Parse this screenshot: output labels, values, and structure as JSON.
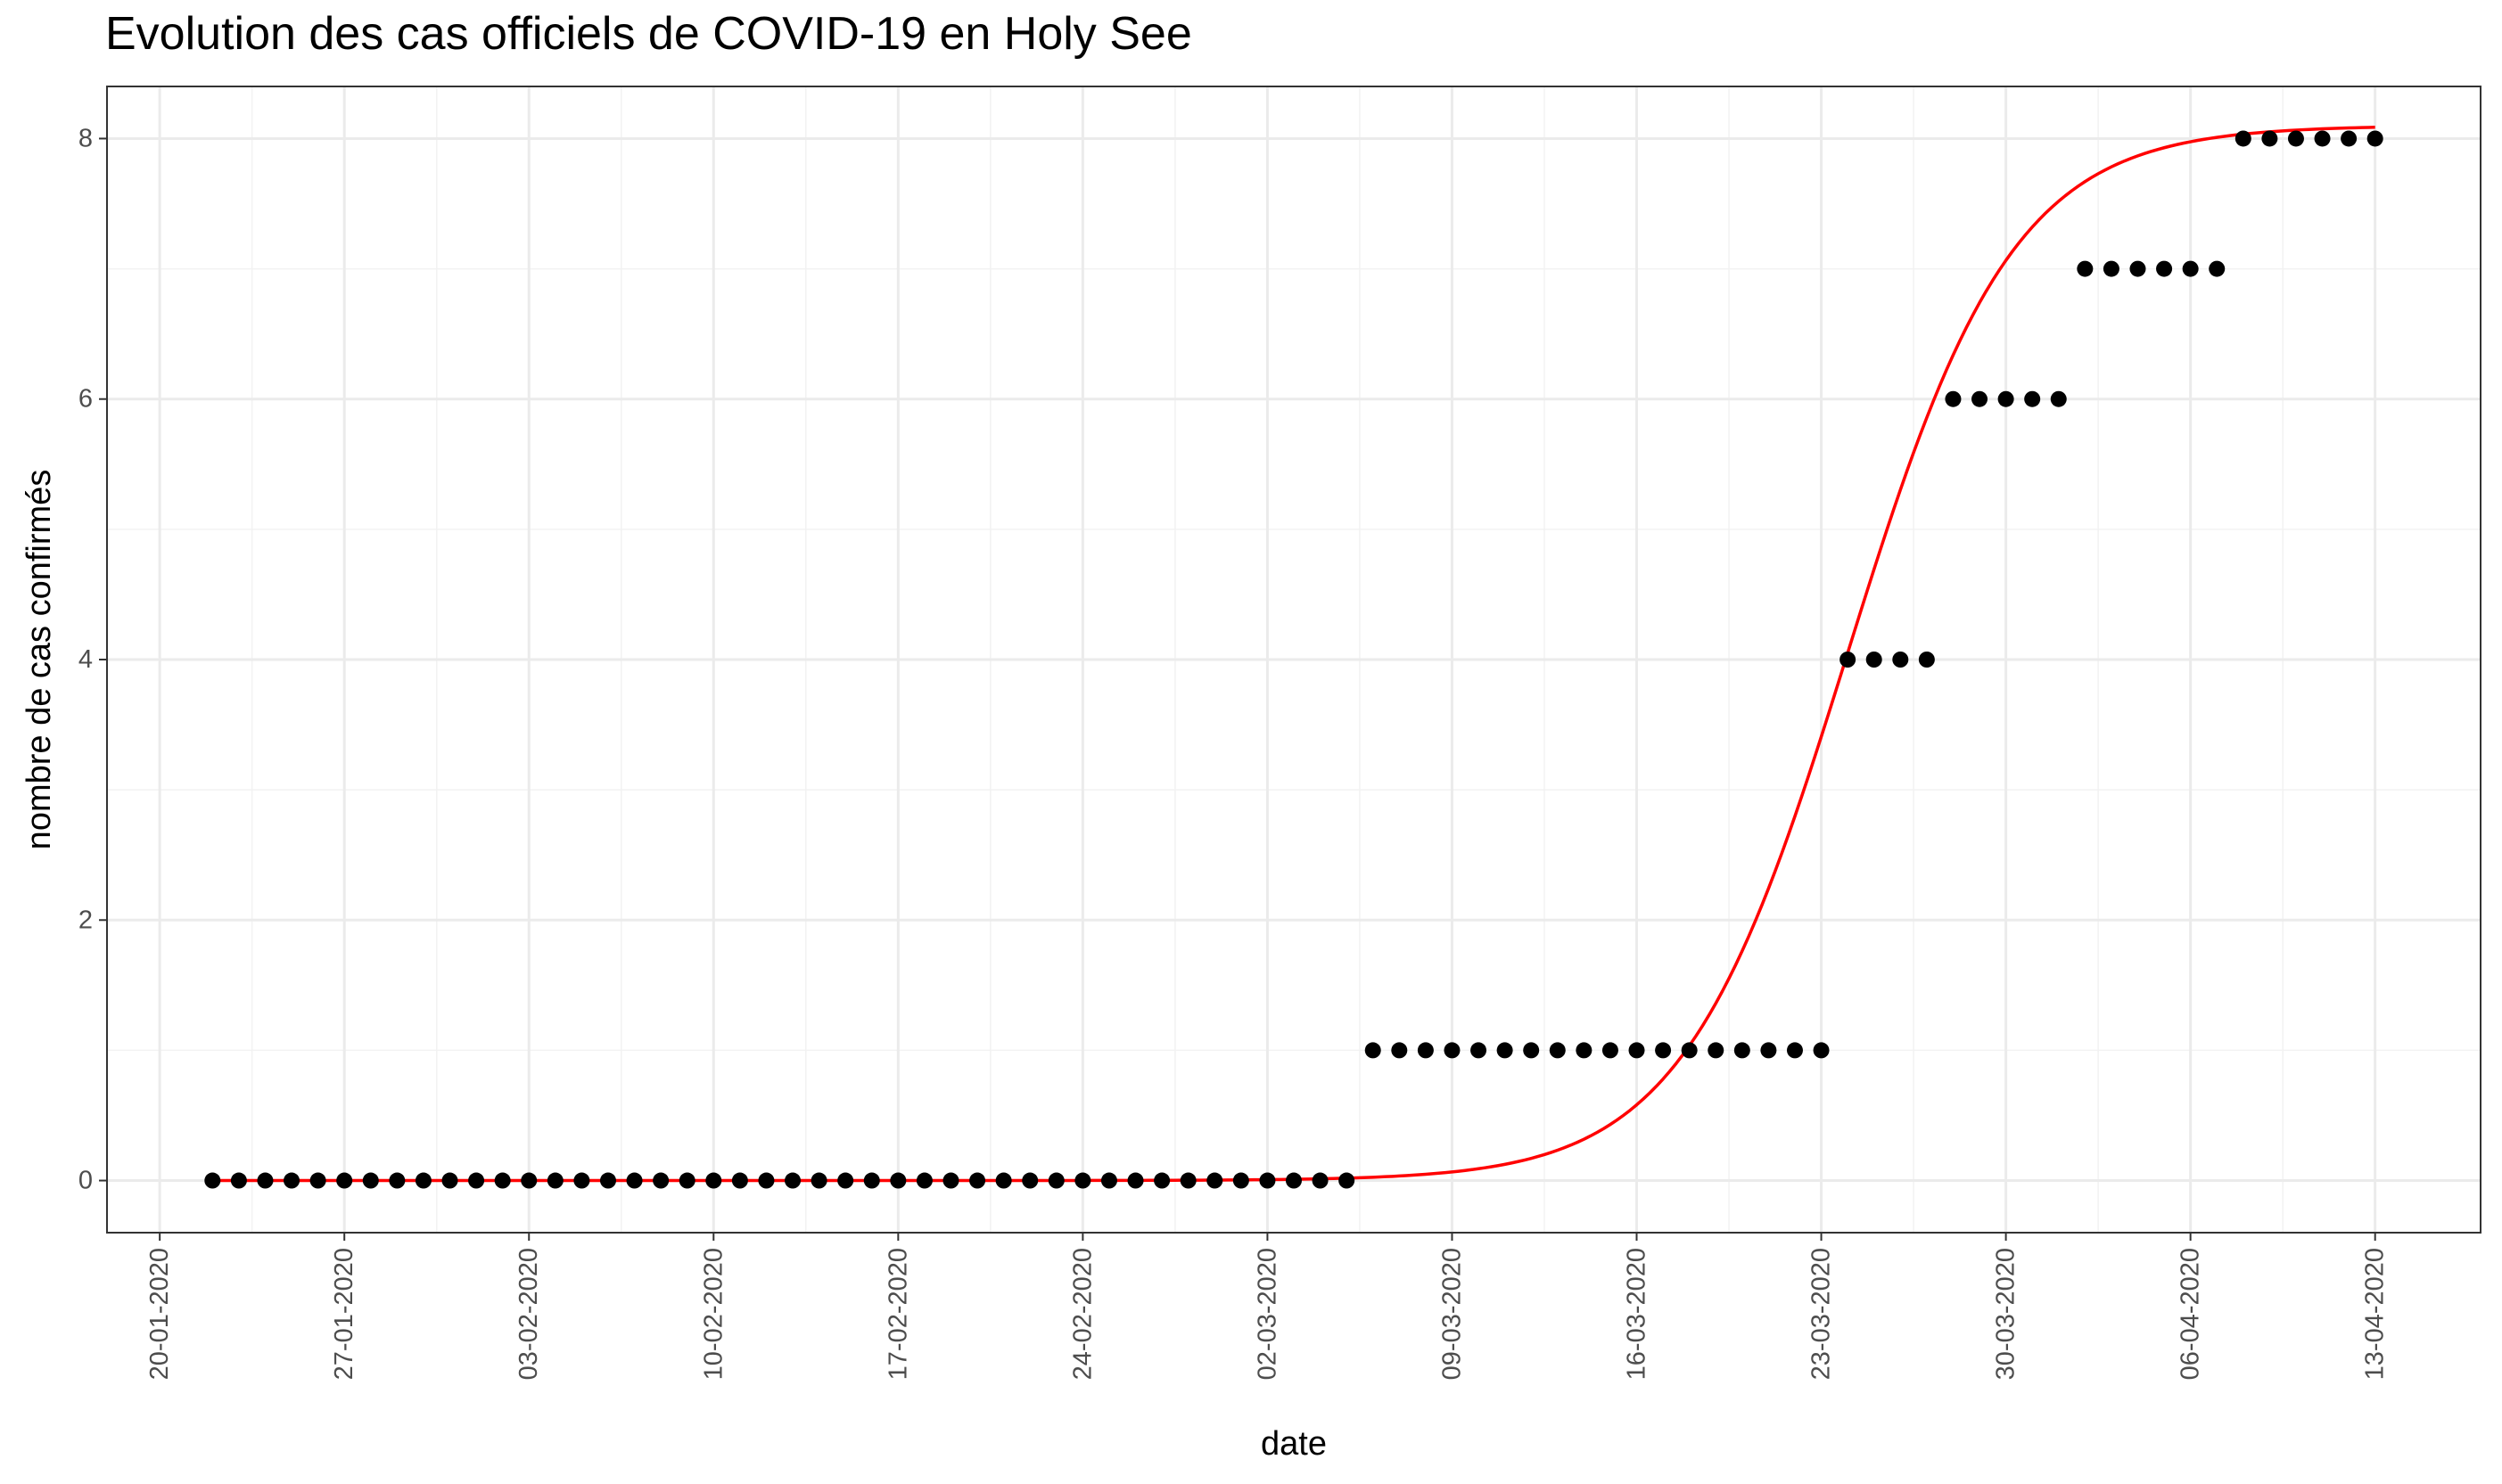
{
  "chart_data": {
    "type": "scatter",
    "title": "Evolution des cas officiels de COVID-19 en Holy See",
    "xlabel": "date",
    "ylabel": "nombre de cas confirmés",
    "x_start": "2020-01-22",
    "x_end": "2020-04-13",
    "xlim": [
      "2020-01-18",
      "2020-04-17"
    ],
    "ylim": [
      -0.4,
      8.4
    ],
    "x_ticks": [
      "20-01-2020",
      "27-01-2020",
      "03-02-2020",
      "10-02-2020",
      "17-02-2020",
      "24-02-2020",
      "02-03-2020",
      "09-03-2020",
      "16-03-2020",
      "23-03-2020",
      "30-03-2020",
      "06-04-2020",
      "13-04-2020"
    ],
    "y_ticks": [
      0,
      2,
      4,
      6,
      8
    ],
    "grid": true,
    "series": [
      {
        "kind": "points",
        "color": "#000000",
        "values": [
          0,
          0,
          0,
          0,
          0,
          0,
          0,
          0,
          0,
          0,
          0,
          0,
          0,
          0,
          0,
          0,
          0,
          0,
          0,
          0,
          0,
          0,
          0,
          0,
          0,
          0,
          0,
          0,
          0,
          0,
          0,
          0,
          0,
          0,
          0,
          0,
          0,
          0,
          0,
          0,
          0,
          0,
          0,
          0,
          1,
          1,
          1,
          1,
          1,
          1,
          1,
          1,
          1,
          1,
          1,
          1,
          1,
          1,
          1,
          1,
          1,
          1,
          4,
          4,
          4,
          4,
          6,
          6,
          6,
          6,
          6,
          7,
          7,
          7,
          7,
          7,
          7,
          8,
          8,
          8,
          8,
          8,
          8
        ]
      },
      {
        "kind": "fit-line",
        "color": "#ff0000",
        "model": "logistic",
        "asymptote": 8.1,
        "midpoint": "2020-03-24",
        "rate": 0.32
      }
    ]
  }
}
